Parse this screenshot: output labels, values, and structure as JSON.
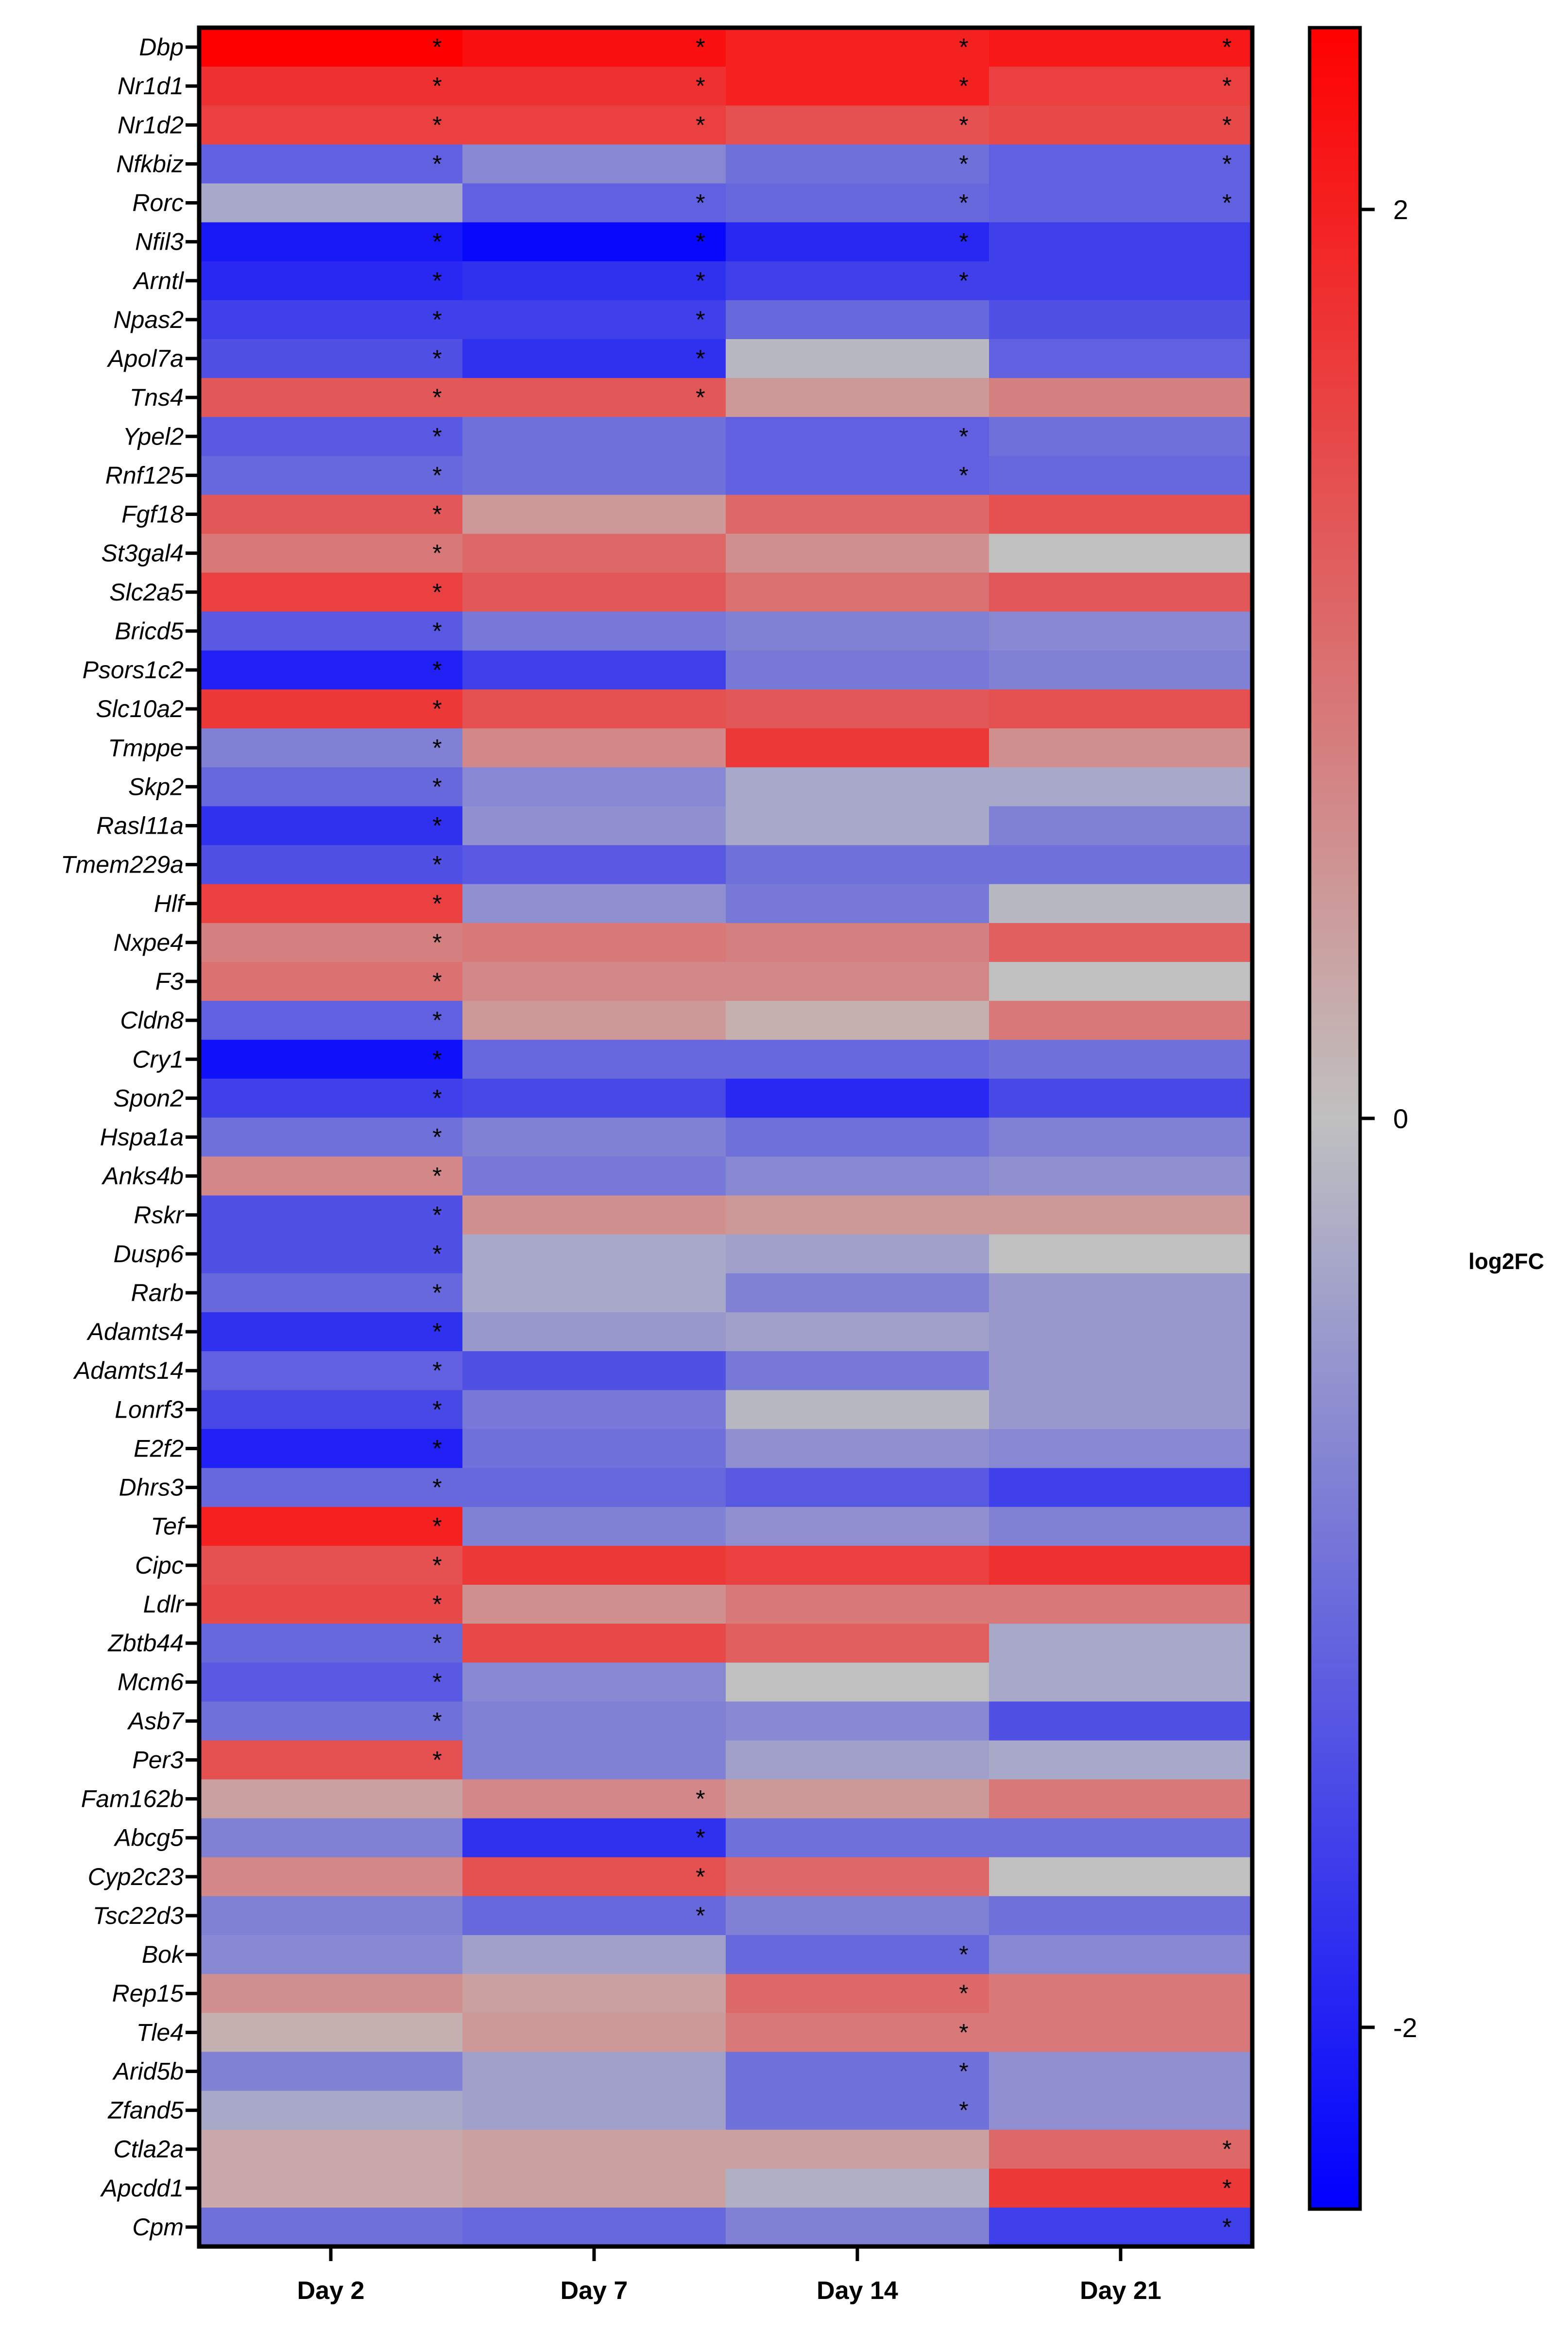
{
  "chart_data": {
    "type": "heatmap",
    "title": "",
    "xlabel": "",
    "ylabel": "",
    "columns": [
      "Day 2",
      "Day 7",
      "Day 14",
      "Day 21"
    ],
    "rows": [
      "Dbp",
      "Nr1d1",
      "Nr1d2",
      "Nfkbiz",
      "Rorc",
      "Nfil3",
      "Arntl",
      "Npas2",
      "Apol7a",
      "Tns4",
      "Ypel2",
      "Rnf125",
      "Fgf18",
      "St3gal4",
      "Slc2a5",
      "Bricd5",
      "Psors1c2",
      "Slc10a2",
      "Tmppe",
      "Skp2",
      "Rasl11a",
      "Tmem229a",
      "Hlf",
      "Nxpe4",
      "F3",
      "Cldn8",
      "Cry1",
      "Spon2",
      "Hspa1a",
      "Anks4b",
      "Rskr",
      "Dusp6",
      "Rarb",
      "Adamts4",
      "Adamts14",
      "Lonrf3",
      "E2f2",
      "Dhrs3",
      "Tef",
      "Cipc",
      "Ldlr",
      "Zbtb44",
      "Mcm6",
      "Asb7",
      "Per3",
      "Fam162b",
      "Abcg5",
      "Cyp2c23",
      "Tsc22d3",
      "Bok",
      "Rep15",
      "Tle4",
      "Arid5b",
      "Zfand5",
      "Ctla2a",
      "Apcdd1",
      "Cpm"
    ],
    "values": [
      [
        2.4,
        2.2,
        2.0,
        2.1
      ],
      [
        1.8,
        1.8,
        2.0,
        1.6
      ],
      [
        1.6,
        1.6,
        1.4,
        1.5
      ],
      [
        -1.2,
        -0.7,
        -1.0,
        -1.2
      ],
      [
        -0.3,
        -1.2,
        -1.1,
        -1.2
      ],
      [
        -2.1,
        -2.3,
        -1.9,
        -1.6
      ],
      [
        -1.9,
        -1.8,
        -1.6,
        -1.6
      ],
      [
        -1.6,
        -1.6,
        -1.1,
        -1.4
      ],
      [
        -1.4,
        -1.8,
        -0.1,
        -1.2
      ],
      [
        1.3,
        1.3,
        0.5,
        0.8
      ],
      [
        -1.3,
        -1.0,
        -1.2,
        -1.0
      ],
      [
        -1.1,
        -1.0,
        -1.2,
        -1.1
      ],
      [
        1.3,
        0.5,
        1.1,
        1.4
      ],
      [
        0.9,
        1.1,
        0.6,
        0.0
      ],
      [
        1.6,
        1.3,
        1.0,
        1.3
      ],
      [
        -1.3,
        -0.9,
        -0.8,
        -0.7
      ],
      [
        -2.0,
        -1.6,
        -0.9,
        -0.8
      ],
      [
        1.7,
        1.4,
        1.3,
        1.4
      ],
      [
        -0.8,
        0.7,
        1.7,
        0.6
      ],
      [
        -1.1,
        -0.7,
        -0.3,
        -0.3
      ],
      [
        -1.8,
        -0.6,
        -0.3,
        -0.8
      ],
      [
        -1.4,
        -1.3,
        -1.0,
        -1.0
      ],
      [
        1.6,
        -0.6,
        -0.9,
        -0.1
      ],
      [
        0.8,
        0.9,
        0.8,
        1.2
      ],
      [
        1.0,
        0.7,
        0.7,
        0.0
      ],
      [
        -1.2,
        0.5,
        0.2,
        0.9
      ],
      [
        -2.2,
        -1.1,
        -1.1,
        -1.0
      ],
      [
        -1.6,
        -1.5,
        -1.9,
        -1.5
      ],
      [
        -1.0,
        -0.8,
        -1.0,
        -0.8
      ],
      [
        0.7,
        -0.9,
        -0.7,
        -0.6
      ],
      [
        -1.4,
        0.6,
        0.5,
        0.5
      ],
      [
        -1.4,
        -0.3,
        -0.4,
        0.0
      ],
      [
        -1.1,
        -0.3,
        -0.8,
        -0.5
      ],
      [
        -1.8,
        -0.5,
        -0.4,
        -0.5
      ],
      [
        -1.2,
        -1.4,
        -0.9,
        -0.5
      ],
      [
        -1.5,
        -0.9,
        -0.1,
        -0.5
      ],
      [
        -2.0,
        -1.0,
        -0.6,
        -0.7
      ],
      [
        -1.1,
        -1.1,
        -1.3,
        -1.6
      ],
      [
        2.0,
        -0.8,
        -0.6,
        -0.8
      ],
      [
        1.4,
        1.7,
        1.6,
        1.8
      ],
      [
        1.5,
        0.6,
        0.9,
        0.9
      ],
      [
        -1.1,
        1.5,
        1.2,
        -0.3
      ],
      [
        -1.3,
        -0.7,
        0.0,
        -0.3
      ],
      [
        -1.0,
        -0.8,
        -0.7,
        -1.4
      ],
      [
        1.4,
        -0.8,
        -0.4,
        -0.3
      ],
      [
        0.4,
        0.7,
        0.5,
        0.9
      ],
      [
        -0.8,
        -1.8,
        -1.0,
        -1.0
      ],
      [
        0.7,
        1.4,
        1.1,
        0.0
      ],
      [
        -0.8,
        -1.1,
        -0.8,
        -1.0
      ],
      [
        -0.7,
        -0.4,
        -1.1,
        -0.7
      ],
      [
        0.6,
        0.4,
        1.1,
        0.9
      ],
      [
        0.2,
        0.5,
        0.9,
        0.9
      ],
      [
        -0.8,
        -0.4,
        -1.0,
        -0.6
      ],
      [
        -0.3,
        -0.4,
        -1.0,
        -0.6
      ],
      [
        0.3,
        0.4,
        0.4,
        1.1
      ],
      [
        0.3,
        0.4,
        -0.2,
        1.7
      ],
      [
        -1.0,
        -1.1,
        -0.8,
        -1.6
      ]
    ],
    "significance_marker": "*",
    "significant": [
      [
        1,
        1,
        1,
        1
      ],
      [
        1,
        1,
        1,
        1
      ],
      [
        1,
        1,
        1,
        1
      ],
      [
        1,
        0,
        1,
        1
      ],
      [
        0,
        1,
        1,
        1
      ],
      [
        1,
        1,
        1,
        0
      ],
      [
        1,
        1,
        1,
        0
      ],
      [
        1,
        1,
        0,
        0
      ],
      [
        1,
        1,
        0,
        0
      ],
      [
        1,
        1,
        0,
        0
      ],
      [
        1,
        0,
        1,
        0
      ],
      [
        1,
        0,
        1,
        0
      ],
      [
        1,
        0,
        0,
        0
      ],
      [
        1,
        0,
        0,
        0
      ],
      [
        1,
        0,
        0,
        0
      ],
      [
        1,
        0,
        0,
        0
      ],
      [
        1,
        0,
        0,
        0
      ],
      [
        1,
        0,
        0,
        0
      ],
      [
        1,
        0,
        0,
        0
      ],
      [
        1,
        0,
        0,
        0
      ],
      [
        1,
        0,
        0,
        0
      ],
      [
        1,
        0,
        0,
        0
      ],
      [
        1,
        0,
        0,
        0
      ],
      [
        1,
        0,
        0,
        0
      ],
      [
        1,
        0,
        0,
        0
      ],
      [
        1,
        0,
        0,
        0
      ],
      [
        1,
        0,
        0,
        0
      ],
      [
        1,
        0,
        0,
        0
      ],
      [
        1,
        0,
        0,
        0
      ],
      [
        1,
        0,
        0,
        0
      ],
      [
        1,
        0,
        0,
        0
      ],
      [
        1,
        0,
        0,
        0
      ],
      [
        1,
        0,
        0,
        0
      ],
      [
        1,
        0,
        0,
        0
      ],
      [
        1,
        0,
        0,
        0
      ],
      [
        1,
        0,
        0,
        0
      ],
      [
        1,
        0,
        0,
        0
      ],
      [
        1,
        0,
        0,
        0
      ],
      [
        1,
        0,
        0,
        0
      ],
      [
        1,
        0,
        0,
        0
      ],
      [
        1,
        0,
        0,
        0
      ],
      [
        1,
        0,
        0,
        0
      ],
      [
        1,
        0,
        0,
        0
      ],
      [
        1,
        0,
        0,
        0
      ],
      [
        1,
        0,
        0,
        0
      ],
      [
        0,
        1,
        0,
        0
      ],
      [
        0,
        1,
        0,
        0
      ],
      [
        0,
        1,
        0,
        0
      ],
      [
        0,
        1,
        0,
        0
      ],
      [
        0,
        0,
        1,
        0
      ],
      [
        0,
        0,
        1,
        0
      ],
      [
        0,
        0,
        1,
        0
      ],
      [
        0,
        0,
        1,
        0
      ],
      [
        0,
        0,
        1,
        0
      ],
      [
        0,
        0,
        0,
        1
      ],
      [
        0,
        0,
        0,
        1
      ],
      [
        0,
        0,
        0,
        1
      ]
    ],
    "colorbar": {
      "label": "log2FC",
      "min": -2.4,
      "max": 2.4,
      "ticks": [
        2,
        0,
        -2
      ],
      "tick_labels": [
        "2",
        "0",
        "-2"
      ],
      "colors": {
        "low": "#0000FF",
        "mid": "#C0C0C0",
        "high": "#FF0000"
      }
    }
  }
}
